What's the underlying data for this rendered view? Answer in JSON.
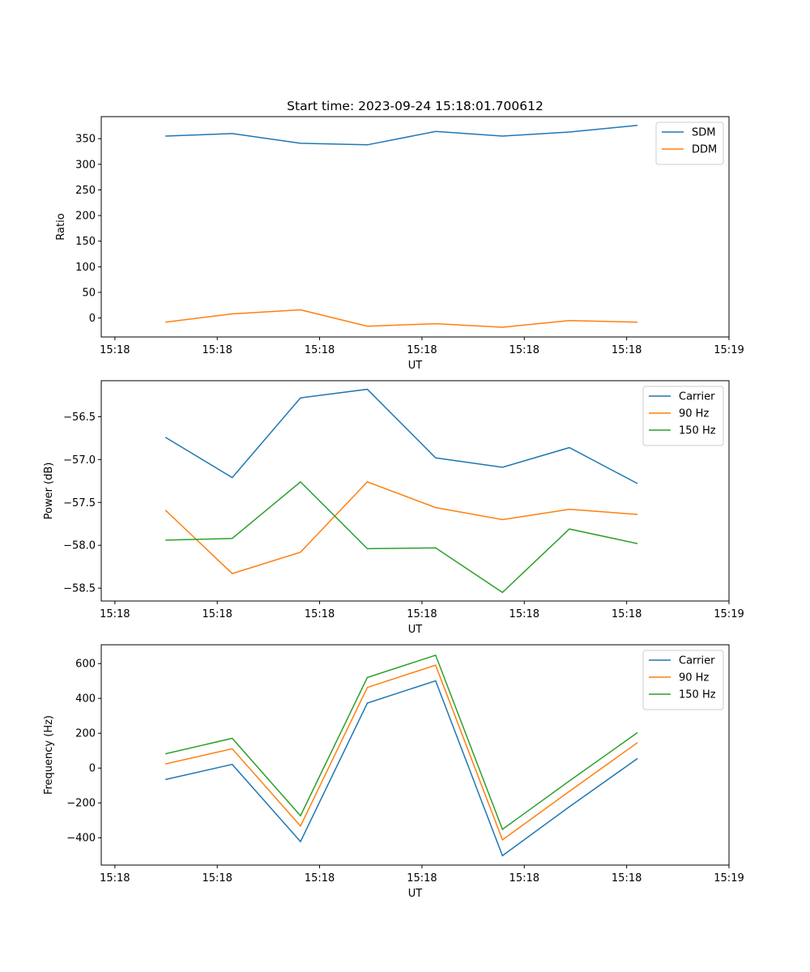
{
  "figure_title": "Start time: 2023-09-24 15:18:01.700612",
  "colors": {
    "blue": "#1f77b4",
    "orange": "#ff7f0e",
    "green": "#2ca02c"
  },
  "chart_data": [
    {
      "type": "line",
      "title": "Start time: 2023-09-24 15:18:01.700612",
      "xlabel": "UT",
      "ylabel": "Ratio",
      "xlim": [
        -0.1,
        4.5
      ],
      "xticks": [
        0,
        0.75,
        1.5,
        2.25,
        3.0,
        3.75,
        4.5
      ],
      "xtick_labels": [
        "15:18",
        "15:18",
        "15:18",
        "15:18",
        "15:18",
        "15:18",
        "15:19"
      ],
      "ylim": [
        -37,
        393
      ],
      "yticks": [
        0,
        50,
        100,
        150,
        200,
        250,
        300,
        350
      ],
      "ytick_labels": [
        "0",
        "50",
        "100",
        "150",
        "200",
        "250",
        "300",
        "350"
      ],
      "legend": "top-right",
      "x": [
        0.37,
        0.86,
        1.36,
        1.85,
        2.35,
        2.84,
        3.33,
        3.83
      ],
      "series": [
        {
          "name": "SDM",
          "color": "#1f77b4",
          "values": [
            355,
            360,
            341,
            338,
            364,
            355,
            363,
            376
          ]
        },
        {
          "name": "DDM",
          "color": "#ff7f0e",
          "values": [
            -8,
            8,
            16,
            -16,
            -11,
            -18,
            -5,
            -8
          ]
        }
      ]
    },
    {
      "type": "line",
      "title": "",
      "xlabel": "UT",
      "ylabel": "Power (dB)",
      "xlim": [
        -0.1,
        4.5
      ],
      "xticks": [
        0,
        0.75,
        1.5,
        2.25,
        3.0,
        3.75,
        4.5
      ],
      "xtick_labels": [
        "15:18",
        "15:18",
        "15:18",
        "15:18",
        "15:18",
        "15:18",
        "15:19"
      ],
      "ylim": [
        -58.65,
        -56.08
      ],
      "yticks": [
        -58.5,
        -58.0,
        -57.5,
        -57.0,
        -56.5
      ],
      "ytick_labels": [
        "−58.5",
        "−58.0",
        "−57.5",
        "−57.0",
        "−56.5"
      ],
      "legend": "top-right",
      "x": [
        0.37,
        0.86,
        1.36,
        1.85,
        2.35,
        2.84,
        3.33,
        3.83
      ],
      "series": [
        {
          "name": "Carrier",
          "color": "#1f77b4",
          "values": [
            -56.74,
            -57.21,
            -56.28,
            -56.18,
            -56.98,
            -57.09,
            -56.86,
            -57.28
          ]
        },
        {
          "name": "90 Hz",
          "color": "#ff7f0e",
          "values": [
            -57.59,
            -58.33,
            -58.08,
            -57.26,
            -57.56,
            -57.7,
            -57.58,
            -57.64
          ]
        },
        {
          "name": "150 Hz",
          "color": "#2ca02c",
          "values": [
            -57.94,
            -57.92,
            -57.26,
            -58.04,
            -58.03,
            -58.55,
            -57.81,
            -57.98
          ]
        }
      ]
    },
    {
      "type": "line",
      "title": "",
      "xlabel": "UT",
      "ylabel": "Frequency (Hz)",
      "xlim": [
        -0.1,
        4.5
      ],
      "xticks": [
        0,
        0.75,
        1.5,
        2.25,
        3.0,
        3.75,
        4.5
      ],
      "xtick_labels": [
        "15:18",
        "15:18",
        "15:18",
        "15:18",
        "15:18",
        "15:18",
        "15:19"
      ],
      "ylim": [
        -557,
        708
      ],
      "yticks": [
        -400,
        -200,
        0,
        200,
        400,
        600
      ],
      "ytick_labels": [
        "−400",
        "−200",
        "0",
        "200",
        "400",
        "600"
      ],
      "legend": "top-right",
      "x": [
        0.37,
        0.86,
        1.36,
        1.85,
        2.35,
        2.84,
        3.33,
        3.83
      ],
      "series": [
        {
          "name": "Carrier",
          "color": "#1f77b4",
          "values": [
            -66,
            21,
            -422,
            373,
            501,
            -503,
            -222,
            55
          ]
        },
        {
          "name": "90 Hz",
          "color": "#ff7f0e",
          "values": [
            24,
            111,
            -333,
            463,
            591,
            -412,
            -134,
            146
          ]
        },
        {
          "name": "150 Hz",
          "color": "#2ca02c",
          "values": [
            82,
            171,
            -274,
            520,
            648,
            -352,
            -74,
            204
          ]
        }
      ]
    }
  ]
}
